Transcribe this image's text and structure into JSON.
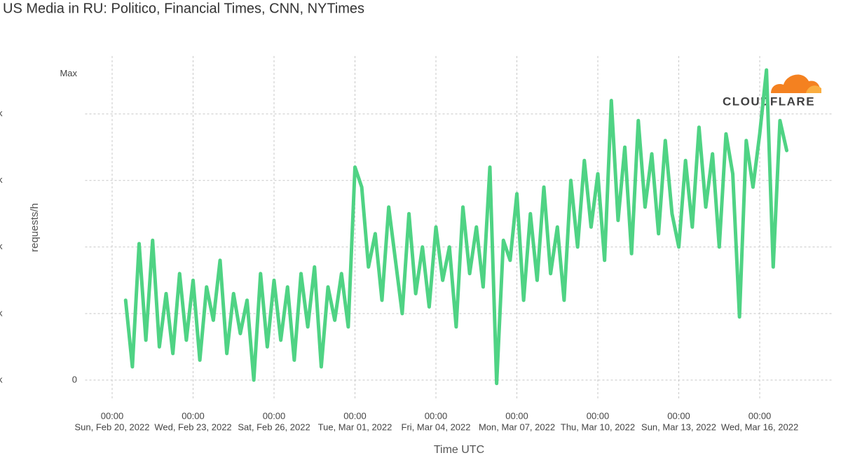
{
  "chart_data": {
    "type": "line",
    "title": "US Media in RU: Politico, Financial Times, CNN, NYTimes",
    "x_label": "Time UTC",
    "y_label": "requests/h",
    "logo_text": "CLOUDFLARE",
    "grid": true,
    "xlim": [
      "2022-02-19T00:00",
      "2022-03-18T16:00"
    ],
    "xticks": [
      {
        "value": "2022-02-20T00:00",
        "label": [
          "00:00",
          "Sun, Feb 20, 2022"
        ]
      },
      {
        "value": "2022-02-23T00:00",
        "label": [
          "00:00",
          "Wed, Feb 23, 2022"
        ]
      },
      {
        "value": "2022-02-26T00:00",
        "label": [
          "00:00",
          "Sat, Feb 26, 2022"
        ]
      },
      {
        "value": "2022-03-01T00:00",
        "label": [
          "00:00",
          "Tue, Mar 01, 2022"
        ]
      },
      {
        "value": "2022-03-04T00:00",
        "label": [
          "00:00",
          "Fri, Mar 04, 2022"
        ]
      },
      {
        "value": "2022-03-07T00:00",
        "label": [
          "00:00",
          "Mon, Mar 07, 2022"
        ]
      },
      {
        "value": "2022-03-10T00:00",
        "label": [
          "00:00",
          "Thu, Mar 10, 2022"
        ]
      },
      {
        "value": "2022-03-13T00:00",
        "label": [
          "00:00",
          "Sun, Mar 13, 2022"
        ]
      },
      {
        "value": "2022-03-16T00:00",
        "label": [
          "00:00",
          "Wed, Mar 16, 2022"
        ]
      }
    ],
    "ylim": [
      -0.18,
      4.87
    ],
    "yticks": [
      {
        "value": 0,
        "label": "0"
      },
      {
        "value": 4.6,
        "label": "Max"
      }
    ],
    "y2lim": [
      -0.18,
      4.87
    ],
    "y2ticks": [
      {
        "value": 0,
        "label": "k"
      },
      {
        "value": 1,
        "label": "k"
      },
      {
        "value": 2,
        "label": "k"
      },
      {
        "value": 3,
        "label": "k"
      },
      {
        "value": 4,
        "label": "k"
      }
    ],
    "x": [
      "2022-02-20T12:00",
      "2022-02-20T18:00",
      "2022-02-21T00:00",
      "2022-02-21T06:00",
      "2022-02-21T12:00",
      "2022-02-21T18:00",
      "2022-02-22T00:00",
      "2022-02-22T06:00",
      "2022-02-22T12:00",
      "2022-02-22T18:00",
      "2022-02-23T00:00",
      "2022-02-23T06:00",
      "2022-02-23T12:00",
      "2022-02-23T18:00",
      "2022-02-24T00:00",
      "2022-02-24T06:00",
      "2022-02-24T12:00",
      "2022-02-24T18:00",
      "2022-02-25T00:00",
      "2022-02-25T06:00",
      "2022-02-25T12:00",
      "2022-02-25T18:00",
      "2022-02-26T00:00",
      "2022-02-26T06:00",
      "2022-02-26T12:00",
      "2022-02-26T18:00",
      "2022-02-27T00:00",
      "2022-02-27T06:00",
      "2022-02-27T12:00",
      "2022-02-27T18:00",
      "2022-02-28T00:00",
      "2022-02-28T06:00",
      "2022-02-28T12:00",
      "2022-02-28T18:00",
      "2022-03-01T00:00",
      "2022-03-01T06:00",
      "2022-03-01T12:00",
      "2022-03-01T18:00",
      "2022-03-02T00:00",
      "2022-03-02T06:00",
      "2022-03-02T12:00",
      "2022-03-02T18:00",
      "2022-03-03T00:00",
      "2022-03-03T06:00",
      "2022-03-03T12:00",
      "2022-03-03T18:00",
      "2022-03-04T00:00",
      "2022-03-04T06:00",
      "2022-03-04T12:00",
      "2022-03-04T18:00",
      "2022-03-05T00:00",
      "2022-03-05T06:00",
      "2022-03-05T12:00",
      "2022-03-05T18:00",
      "2022-03-06T00:00",
      "2022-03-06T06:00",
      "2022-03-06T12:00",
      "2022-03-06T18:00",
      "2022-03-07T00:00",
      "2022-03-07T06:00",
      "2022-03-07T12:00",
      "2022-03-07T18:00",
      "2022-03-08T00:00",
      "2022-03-08T06:00",
      "2022-03-08T12:00",
      "2022-03-08T18:00",
      "2022-03-09T00:00",
      "2022-03-09T06:00",
      "2022-03-09T12:00",
      "2022-03-09T18:00",
      "2022-03-10T00:00",
      "2022-03-10T06:00",
      "2022-03-10T12:00",
      "2022-03-10T18:00",
      "2022-03-11T00:00",
      "2022-03-11T06:00",
      "2022-03-11T12:00",
      "2022-03-11T18:00",
      "2022-03-12T00:00",
      "2022-03-12T06:00",
      "2022-03-12T12:00",
      "2022-03-12T18:00",
      "2022-03-13T00:00",
      "2022-03-13T06:00",
      "2022-03-13T12:00",
      "2022-03-13T18:00",
      "2022-03-14T00:00",
      "2022-03-14T06:00",
      "2022-03-14T12:00",
      "2022-03-14T18:00",
      "2022-03-15T00:00",
      "2022-03-15T06:00",
      "2022-03-15T12:00",
      "2022-03-15T18:00",
      "2022-03-16T00:00",
      "2022-03-16T06:00",
      "2022-03-16T12:00",
      "2022-03-16T18:00",
      "2022-03-17T00:00"
    ],
    "series": [
      {
        "color": "#4fd384",
        "values": [
          1.2,
          0.2,
          2.05,
          0.6,
          2.1,
          0.5,
          1.3,
          0.4,
          1.6,
          0.6,
          1.5,
          0.3,
          1.4,
          0.9,
          1.8,
          0.4,
          1.3,
          0.7,
          1.2,
          0.0,
          1.6,
          0.5,
          1.5,
          0.6,
          1.4,
          0.3,
          1.6,
          0.8,
          1.7,
          0.2,
          1.4,
          0.9,
          1.6,
          0.8,
          3.2,
          2.9,
          1.7,
          2.2,
          1.2,
          2.6,
          1.8,
          1.0,
          2.5,
          1.3,
          2.0,
          1.1,
          2.3,
          1.5,
          2.0,
          0.8,
          2.6,
          1.6,
          2.3,
          1.4,
          3.2,
          -0.05,
          2.1,
          1.8,
          2.8,
          1.2,
          2.5,
          1.5,
          2.9,
          1.6,
          2.3,
          1.2,
          3.0,
          2.0,
          3.3,
          2.3,
          3.1,
          1.8,
          4.2,
          2.4,
          3.5,
          1.9,
          3.9,
          2.6,
          3.4,
          2.2,
          3.6,
          2.5,
          2.0,
          3.3,
          2.3,
          3.8,
          2.6,
          3.4,
          2.0,
          3.7,
          3.1,
          0.95,
          3.6,
          2.9,
          3.7,
          4.66,
          1.7,
          3.9,
          3.45
        ]
      }
    ]
  }
}
